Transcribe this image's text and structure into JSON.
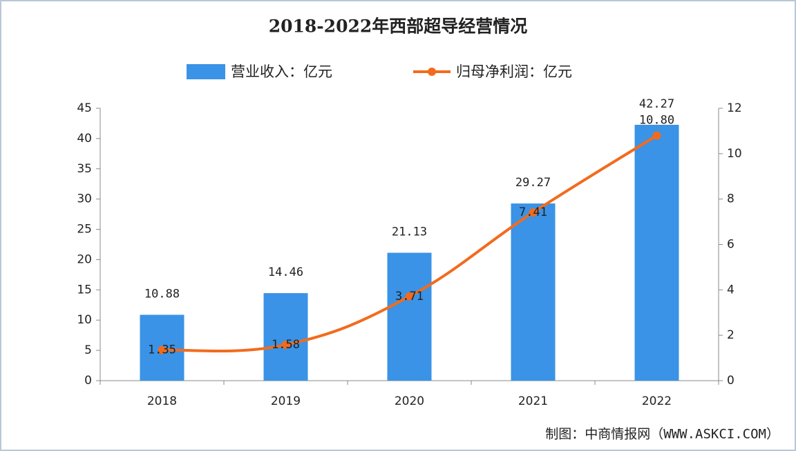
{
  "chart_data": {
    "type": "bar-line",
    "title": "2018-2022年西部超导经营情况",
    "categories": [
      "2018",
      "2019",
      "2020",
      "2021",
      "2022"
    ],
    "series": [
      {
        "name": "营业收入：亿元",
        "type": "bar",
        "color": "#3a93e6",
        "values": [
          10.88,
          14.46,
          21.13,
          29.27,
          42.27
        ]
      },
      {
        "name": "归母净利润：亿元",
        "type": "line",
        "axis": "y2",
        "color": "#f26b1d",
        "values": [
          1.35,
          1.58,
          3.71,
          7.41,
          10.8
        ],
        "value_labels": [
          "1.35",
          "1.58",
          "3.71",
          "7.41",
          "10.80"
        ]
      }
    ],
    "ylim": [
      0,
      45
    ],
    "yticks": [
      0,
      5,
      10,
      15,
      20,
      25,
      30,
      35,
      40,
      45
    ],
    "y2lim": [
      0,
      12
    ],
    "y2ticks": [
      0,
      2,
      4,
      6,
      8,
      10,
      12
    ],
    "source": "制图：中商情报网（WWW.ASKCI.COM）"
  }
}
